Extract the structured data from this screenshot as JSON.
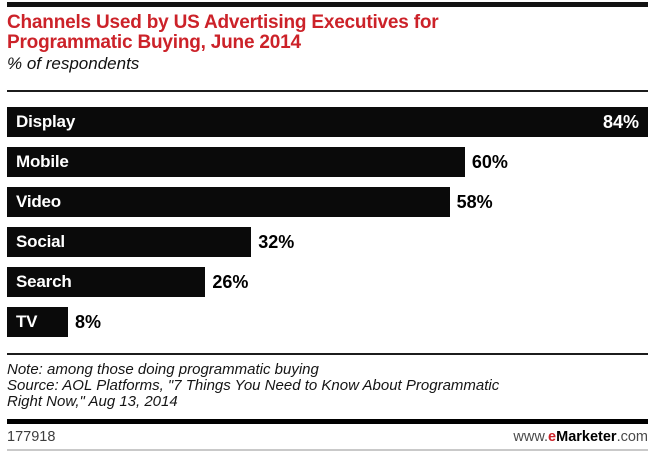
{
  "header": {
    "title_line1": "Channels Used by US Advertising Executives for",
    "title_line2": "Programmatic Buying, June 2014",
    "subtitle": "% of respondents"
  },
  "chart_data": {
    "type": "bar",
    "orientation": "horizontal",
    "title": "Channels Used by US Advertising Executives for Programmatic Buying, June 2014",
    "subtitle": "% of respondents",
    "unit": "% of respondents",
    "categories": [
      "Display",
      "Mobile",
      "Video",
      "Social",
      "Search",
      "TV"
    ],
    "values": [
      84,
      60,
      58,
      32,
      26,
      8
    ],
    "value_labels": [
      "84%",
      "60%",
      "58%",
      "32%",
      "26%",
      "8%"
    ],
    "xlim": [
      0,
      84
    ],
    "grid": false,
    "legend": false,
    "bar_color": "#0a0a0a",
    "max_value_label_inside_bar": true
  },
  "footer": {
    "note": "Note: among those doing programmatic buying",
    "source_line1": "Source: AOL Platforms, \"7 Things You Need to Know About Programmatic",
    "source_line2": "Right Now,\" Aug 13, 2014",
    "chart_id": "177918",
    "website": {
      "prefix": "www.",
      "e": "e",
      "brand": "Marketer",
      "suffix": ".com"
    }
  },
  "colors": {
    "accent_red": "#cc2229",
    "bar_black": "#0a0a0a",
    "rule_dark": "#1c1c1c",
    "rule_faint": "#c9c9c9"
  }
}
